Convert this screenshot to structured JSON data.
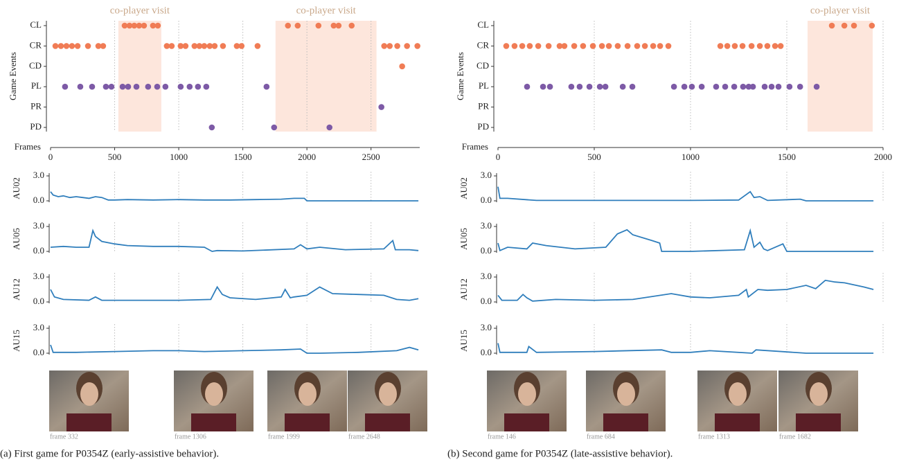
{
  "panels": [
    {
      "caption": "(a) First game for P0354Z (early-assistive behavior).",
      "thumbnails": [
        {
          "label": "frame 332"
        },
        {
          "label": "frame 1306"
        },
        {
          "label": "frame 1999"
        },
        {
          "label": "frame 2648"
        }
      ]
    },
    {
      "caption": "(b) Second game for P0354Z (late-assistive behavior).",
      "thumbnails": [
        {
          "label": "frame 146"
        },
        {
          "label": "frame 684"
        },
        {
          "label": "frame 1313"
        },
        {
          "label": "frame 1682"
        }
      ]
    }
  ],
  "chart_data": [
    {
      "type": "events",
      "ylabel": "Game Events",
      "xlabel": "Frames",
      "xlim": [
        0,
        2880
      ],
      "xticks": [
        0,
        500,
        1000,
        1500,
        2000,
        2500
      ],
      "grid": true,
      "categories": [
        "CL",
        "CR",
        "CD",
        "PL",
        "PR",
        "PD"
      ],
      "series": [
        {
          "color": "#f07c55",
          "x": [
            578,
            616,
            653,
            691,
            729,
            799,
            837,
            1852,
            1928,
            2090,
            2209,
            2247,
            2349
          ]
        },
        {
          "color": "#f07c55",
          "x": [
            38,
            81,
            124,
            167,
            211,
            292,
            373,
            410,
            907,
            945,
            1015,
            1053,
            1123,
            1161,
            1199,
            1242,
            1280,
            1345,
            1453,
            1490,
            1615,
            2603,
            2646,
            2705,
            2781,
            2862
          ]
        },
        {
          "color": "#f07c55",
          "x": [
            2743
          ]
        },
        {
          "color": "#7d5aa6",
          "x": [
            113,
            232,
            324,
            432,
            475,
            562,
            605,
            670,
            761,
            832,
            896,
            1015,
            1085,
            1150,
            1215,
            1685
          ]
        },
        {
          "color": "#7d5aa6",
          "x": [
            2581
          ]
        },
        {
          "color": "#7d5aa6",
          "x": [
            1258,
            1744,
            2176
          ]
        }
      ],
      "spans": [
        {
          "label": "co-player visit",
          "x": [
            529,
            864
          ],
          "color": "#fde6dc"
        },
        {
          "label": "co-player visit",
          "x": [
            1755,
            2543
          ],
          "color": "#fde6dc"
        }
      ]
    },
    {
      "type": "line",
      "ylabel": "AU02",
      "xlim": [
        0,
        2880
      ],
      "ylim": [
        0,
        3
      ],
      "yticks": [
        {
          "value": 0,
          "label": "0.0"
        },
        {
          "value": 3,
          "label": "3.0"
        }
      ],
      "grid_x": [
        500,
        1000,
        1500,
        2000,
        2500
      ],
      "color": "#2f7ebc",
      "x": [
        0,
        20,
        60,
        100,
        150,
        200,
        250,
        300,
        350,
        400,
        450,
        500,
        600,
        800,
        1000,
        1200,
        1400,
        1600,
        1800,
        1900,
        1980,
        2000,
        2200,
        2500,
        2800,
        2870
      ],
      "values": [
        1.1,
        0.7,
        0.5,
        0.6,
        0.4,
        0.5,
        0.4,
        0.3,
        0.5,
        0.4,
        0.1,
        0.1,
        0.15,
        0.1,
        0.15,
        0.1,
        0.1,
        0.15,
        0.2,
        0.3,
        0.3,
        0,
        0,
        0,
        0,
        0
      ]
    },
    {
      "type": "line",
      "ylabel": "AU05",
      "xlim": [
        0,
        2880
      ],
      "ylim": [
        0,
        3
      ],
      "yticks": [
        {
          "value": 0,
          "label": "0.0"
        },
        {
          "value": 3,
          "label": "3.0"
        }
      ],
      "grid_x": [
        500,
        1000,
        1500,
        2000,
        2500
      ],
      "color": "#2f7ebc",
      "x": [
        0,
        100,
        200,
        300,
        330,
        350,
        400,
        500,
        600,
        800,
        1000,
        1200,
        1260,
        1300,
        1500,
        1900,
        1950,
        2000,
        2100,
        2300,
        2600,
        2670,
        2690,
        2800,
        2870
      ],
      "values": [
        0.5,
        0.6,
        0.5,
        0.5,
        2.5,
        1.8,
        1.2,
        0.9,
        0.7,
        0.6,
        0.6,
        0.5,
        0,
        0.1,
        0.05,
        0.3,
        0.8,
        0.3,
        0.5,
        0.2,
        0.3,
        1.3,
        0.2,
        0.2,
        0.1
      ]
    },
    {
      "type": "line",
      "ylabel": "AU12",
      "xlim": [
        0,
        2880
      ],
      "ylim": [
        0,
        3
      ],
      "yticks": [
        {
          "value": 0,
          "label": "0.0"
        },
        {
          "value": 3,
          "label": "3.0"
        }
      ],
      "grid_x": [
        500,
        1000,
        1500,
        2000,
        2500
      ],
      "color": "#2f7ebc",
      "x": [
        0,
        30,
        100,
        300,
        350,
        400,
        600,
        1000,
        1250,
        1300,
        1340,
        1400,
        1600,
        1800,
        1830,
        1870,
        1900,
        2000,
        2100,
        2200,
        2400,
        2600,
        2700,
        2800,
        2870
      ],
      "values": [
        1.5,
        0.6,
        0.3,
        0.2,
        0.6,
        0.2,
        0.2,
        0.2,
        0.3,
        1.8,
        0.9,
        0.5,
        0.3,
        0.6,
        1.5,
        0.5,
        0.6,
        0.8,
        1.8,
        1.0,
        0.9,
        0.8,
        0.3,
        0.2,
        0.4
      ]
    },
    {
      "type": "line",
      "ylabel": "AU15",
      "xlim": [
        0,
        2880
      ],
      "ylim": [
        0,
        3
      ],
      "yticks": [
        {
          "value": 0,
          "label": "0.0"
        },
        {
          "value": 3,
          "label": "3.0"
        }
      ],
      "grid_x": [
        500,
        1000,
        1500,
        2000,
        2500
      ],
      "color": "#2f7ebc",
      "x": [
        0,
        20,
        200,
        500,
        800,
        1000,
        1200,
        1500,
        1800,
        1950,
        2000,
        2100,
        2400,
        2700,
        2800,
        2870
      ],
      "values": [
        1.0,
        0.1,
        0.1,
        0.2,
        0.3,
        0.3,
        0.2,
        0.3,
        0.4,
        0.5,
        0,
        0,
        0.1,
        0.3,
        0.7,
        0.4
      ]
    },
    {
      "type": "events",
      "ylabel": "Game Events",
      "xlabel": "Frames",
      "xlim": [
        0,
        2000
      ],
      "xticks": [
        0,
        500,
        1000,
        1500,
        2000
      ],
      "grid": true,
      "categories": [
        "CL",
        "CR",
        "CD",
        "PL",
        "PR",
        "PD"
      ],
      "series": [
        {
          "color": "#f07c55",
          "x": [
            1734,
            1799,
            1849,
            1942
          ]
        },
        {
          "color": "#f07c55",
          "x": [
            43,
            86,
            126,
            165,
            209,
            263,
            320,
            345,
            396,
            442,
            493,
            540,
            576,
            622,
            673,
            723,
            763,
            806,
            842,
            885,
            1155,
            1191,
            1230,
            1270,
            1317,
            1360,
            1399,
            1439,
            1468
          ]
        },
        {
          "color": "#f07c55",
          "x": []
        },
        {
          "color": "#7d5aa6",
          "x": [
            151,
            234,
            270,
            381,
            424,
            475,
            529,
            558,
            648,
            698,
            914,
            968,
            1007,
            1058,
            1133,
            1180,
            1227,
            1273,
            1302,
            1324,
            1385,
            1421,
            1457,
            1514,
            1569,
            1655
          ]
        },
        {
          "color": "#7d5aa6",
          "x": []
        },
        {
          "color": "#7d5aa6",
          "x": []
        }
      ],
      "spans": [
        {
          "label": "co-player visit",
          "x": [
            1608,
            1946
          ],
          "color": "#fde6dc"
        }
      ]
    },
    {
      "type": "line",
      "ylabel": "AU02",
      "xlim": [
        0,
        2000
      ],
      "ylim": [
        0,
        3
      ],
      "yticks": [
        {
          "value": 0,
          "label": "0.0"
        },
        {
          "value": 3,
          "label": "3.0"
        }
      ],
      "grid_x": [
        500,
        1000,
        1500,
        2000
      ],
      "color": "#2f7ebc",
      "x": [
        0,
        10,
        50,
        200,
        500,
        1000,
        1250,
        1310,
        1330,
        1360,
        1400,
        1570,
        1600,
        1950
      ],
      "values": [
        1.7,
        0.3,
        0.3,
        0.05,
        0.05,
        0.05,
        0.1,
        1.1,
        0.4,
        0.5,
        0.05,
        0.2,
        0,
        0
      ]
    },
    {
      "type": "line",
      "ylabel": "AU05",
      "xlim": [
        0,
        2000
      ],
      "ylim": [
        0,
        3
      ],
      "yticks": [
        {
          "value": 0,
          "label": "0.0"
        },
        {
          "value": 3,
          "label": "3.0"
        }
      ],
      "grid_x": [
        500,
        1000,
        1500,
        2000
      ],
      "color": "#2f7ebc",
      "x": [
        0,
        10,
        50,
        150,
        180,
        250,
        400,
        560,
        620,
        670,
        700,
        800,
        840,
        850,
        1000,
        1280,
        1310,
        1330,
        1360,
        1380,
        1400,
        1480,
        1500,
        1950
      ],
      "values": [
        1.0,
        0.1,
        0.5,
        0.3,
        1.0,
        0.7,
        0.3,
        0.5,
        2.1,
        2.6,
        2.0,
        1.3,
        1.0,
        0,
        0,
        0.2,
        2.5,
        0.5,
        1.1,
        0.3,
        0.1,
        0.9,
        0,
        0
      ]
    },
    {
      "type": "line",
      "ylabel": "AU12",
      "xlim": [
        0,
        2000
      ],
      "ylim": [
        0,
        3
      ],
      "yticks": [
        {
          "value": 0,
          "label": "0.0"
        },
        {
          "value": 3,
          "label": "3.0"
        }
      ],
      "grid_x": [
        500,
        1000,
        1500,
        2000
      ],
      "color": "#2f7ebc",
      "x": [
        0,
        20,
        100,
        130,
        150,
        180,
        300,
        500,
        700,
        900,
        1000,
        1100,
        1250,
        1290,
        1300,
        1350,
        1400,
        1500,
        1600,
        1650,
        1700,
        1750,
        1800,
        1900,
        1950
      ],
      "values": [
        0.8,
        0.2,
        0.2,
        0.9,
        0.5,
        0.1,
        0.3,
        0.2,
        0.3,
        1.0,
        0.6,
        0.5,
        0.8,
        1.5,
        0.6,
        1.5,
        1.4,
        1.5,
        2.0,
        1.6,
        2.6,
        2.4,
        2.3,
        1.8,
        1.5
      ]
    },
    {
      "type": "line",
      "ylabel": "AU15",
      "xlim": [
        0,
        2000
      ],
      "ylim": [
        0,
        3
      ],
      "yticks": [
        {
          "value": 0,
          "label": "0.0"
        },
        {
          "value": 3,
          "label": "3.0"
        }
      ],
      "grid_x": [
        500,
        1000,
        1500,
        2000
      ],
      "color": "#2f7ebc",
      "x": [
        0,
        10,
        150,
        160,
        200,
        500,
        850,
        900,
        1000,
        1100,
        1320,
        1340,
        1600,
        1950
      ],
      "values": [
        1.2,
        0.1,
        0.1,
        0.8,
        0.1,
        0.2,
        0.4,
        0.1,
        0.1,
        0.3,
        0,
        0.4,
        0,
        0
      ]
    }
  ]
}
